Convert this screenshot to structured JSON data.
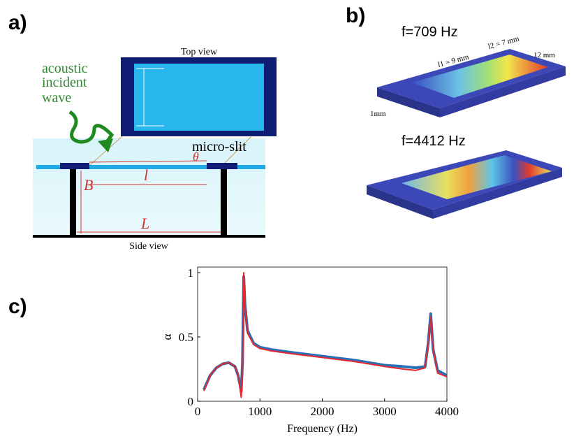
{
  "panel_a": {
    "label": "a)",
    "top_view": "Top view",
    "wave": [
      "acoustic",
      "incident",
      "wave"
    ],
    "slit": "micro-slit",
    "theta": "θ",
    "l": "l",
    "B": "B",
    "L": "L",
    "side_view": "Side view"
  },
  "panel_b": {
    "label": "b)",
    "mode1": "f=709 Hz",
    "l1": "l1 = 9 mm",
    "l2": "l2 = 7 mm",
    "width": "12 mm",
    "slit": "1mm",
    "mode2": "f=4412 Hz"
  },
  "panel_c": {
    "label": "c)"
  },
  "chart_data": {
    "type": "line",
    "x_label": "Frequency (Hz)",
    "y_label": "α",
    "x": [
      100,
      200,
      300,
      400,
      500,
      600,
      650,
      700,
      720,
      740,
      760,
      800,
      900,
      1000,
      1200,
      1500,
      2000,
      2500,
      3000,
      3300,
      3500,
      3650,
      3700,
      3740,
      3780,
      3850,
      4000
    ],
    "series": [
      {
        "color": "#2a6fb5",
        "values": [
          0.09,
          0.2,
          0.26,
          0.29,
          0.3,
          0.27,
          0.2,
          0.08,
          0.3,
          0.97,
          0.75,
          0.55,
          0.45,
          0.42,
          0.4,
          0.38,
          0.35,
          0.32,
          0.28,
          0.27,
          0.26,
          0.27,
          0.45,
          0.68,
          0.4,
          0.24,
          0.2
        ]
      },
      {
        "color": "#e8262b",
        "values": [
          0.08,
          0.2,
          0.26,
          0.29,
          0.3,
          0.27,
          0.2,
          0.03,
          0.2,
          1.0,
          0.75,
          0.53,
          0.44,
          0.41,
          0.39,
          0.37,
          0.34,
          0.31,
          0.27,
          0.25,
          0.24,
          0.26,
          0.45,
          0.66,
          0.4,
          0.22,
          0.19
        ]
      }
    ],
    "xlim": [
      0,
      4000
    ],
    "xticks": [
      0,
      1000,
      2000,
      3000,
      4000
    ],
    "ylim": [
      0,
      1
    ],
    "yticks": [
      0,
      0.5,
      1
    ],
    "grid": false
  }
}
